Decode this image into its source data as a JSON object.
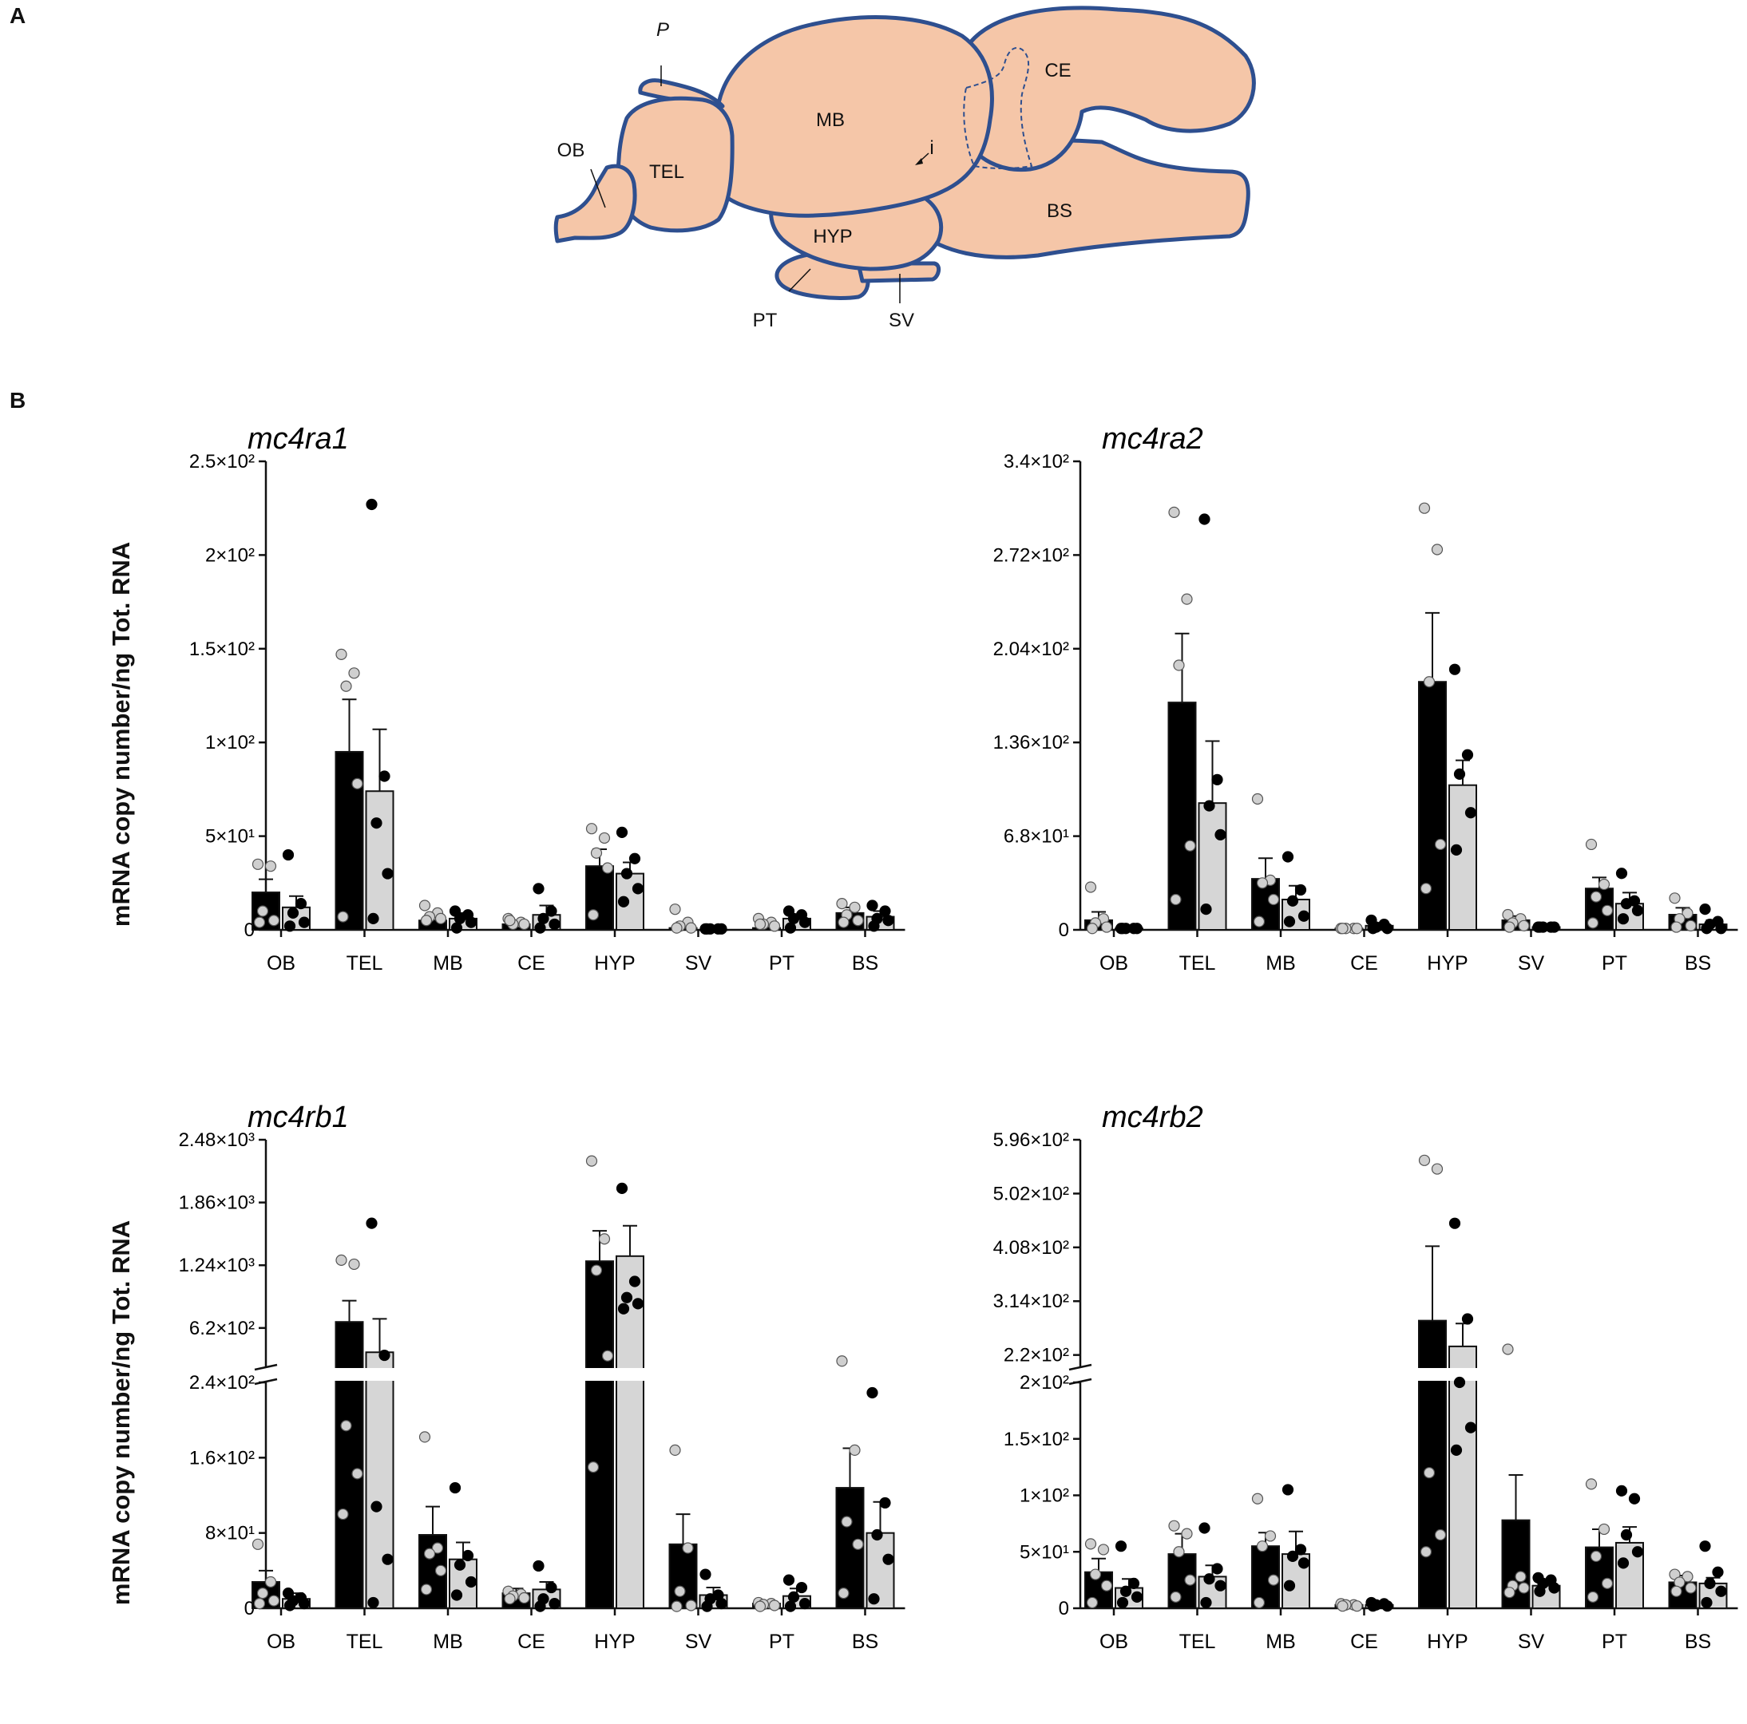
{
  "panel_a": {
    "letter": "A",
    "regions": {
      "ob": "OB",
      "tel": "TEL",
      "mb": "MB",
      "ce": "CE",
      "bs": "BS",
      "hyp": "HYP",
      "pt": "PT",
      "sv": "SV",
      "p": "P",
      "i": "i"
    }
  },
  "panel_b": {
    "letter": "B",
    "ylabel": "mRNA copy number/ng Tot. RNA"
  },
  "colors": {
    "brain_fill": "#f5c6a8",
    "brain_stroke": "#2e4f8f",
    "bar_black": "#000000",
    "bar_grey": "#d6d6d6",
    "dot_grey": "#cfcfcf"
  },
  "chart_data": [
    {
      "type": "bar",
      "title": "mc4ra1",
      "categories": [
        "OB",
        "TEL",
        "MB",
        "CE",
        "HYP",
        "SV",
        "PT",
        "BS"
      ],
      "ylabel": "mRNA copy number/ng Tot. RNA",
      "ylim": [
        0,
        250
      ],
      "yticks": [
        {
          "v": 0,
          "label": "0"
        },
        {
          "v": 50,
          "label": "5×10¹"
        },
        {
          "v": 100,
          "label": "1×10²"
        },
        {
          "v": 150,
          "label": "1.5×10²"
        },
        {
          "v": 200,
          "label": "2×10²"
        },
        {
          "v": 250,
          "label": "2.5×10²"
        }
      ],
      "series": [
        {
          "name": "black",
          "values": [
            20,
            95,
            5,
            3,
            34,
            1,
            1,
            9
          ],
          "errors": [
            7,
            28,
            2,
            1,
            9,
            3,
            1,
            3
          ],
          "points": [
            [
              35,
              34,
              10,
              5,
              4
            ],
            [
              147,
              137,
              130,
              78,
              7
            ],
            [
              13,
              9,
              7,
              6,
              5
            ],
            [
              6,
              4,
              3,
              3,
              5
            ],
            [
              54,
              49,
              41,
              33,
              8
            ],
            [
              11,
              4,
              2,
              1,
              1
            ],
            [
              6,
              4,
              3,
              2,
              3
            ],
            [
              14,
              12,
              8,
              5,
              4
            ]
          ]
        },
        {
          "name": "grey",
          "values": [
            12,
            74,
            6,
            8,
            30,
            0,
            6,
            7
          ],
          "errors": [
            6,
            33,
            3,
            5,
            6,
            0,
            2,
            3
          ],
          "points": [
            [
              40,
              14,
              9,
              4,
              2
            ],
            [
              227,
              82,
              57,
              30,
              6
            ],
            [
              10,
              8,
              6,
              4,
              1
            ],
            [
              22,
              10,
              6,
              3,
              1
            ],
            [
              52,
              38,
              30,
              22,
              15
            ],
            [
              0.5,
              0.5,
              0.5,
              0.5,
              0.5
            ],
            [
              10,
              8,
              6,
              4,
              1
            ],
            [
              13,
              10,
              6,
              5,
              2
            ]
          ]
        }
      ]
    },
    {
      "type": "bar",
      "title": "mc4ra2",
      "categories": [
        "OB",
        "TEL",
        "MB",
        "CE",
        "HYP",
        "SV",
        "PT",
        "BS"
      ],
      "ylabel": "mRNA copy number/ng Tot. RNA",
      "ylim": [
        0,
        340
      ],
      "yticks": [
        {
          "v": 0,
          "label": "0"
        },
        {
          "v": 68,
          "label": "6.8×10¹"
        },
        {
          "v": 136,
          "label": "1.36×10²"
        },
        {
          "v": 204,
          "label": "2.04×10²"
        },
        {
          "v": 272,
          "label": "2.72×10²"
        },
        {
          "v": 340,
          "label": "3.4×10²"
        }
      ],
      "series": [
        {
          "name": "black",
          "values": [
            7,
            165,
            37,
            1,
            180,
            7,
            30,
            11
          ],
          "errors": [
            6,
            50,
            15,
            1,
            50,
            3,
            8,
            5
          ],
          "points": [
            [
              31,
              8,
              5,
              2,
              1
            ],
            [
              303,
              240,
              192,
              61,
              22
            ],
            [
              95,
              36,
              34,
              22,
              6
            ],
            [
              1,
              1,
              1,
              1,
              1
            ],
            [
              306,
              276,
              180,
              62,
              30
            ],
            [
              11,
              8,
              5,
              3,
              2
            ],
            [
              62,
              33,
              24,
              14,
              5
            ],
            [
              23,
              12,
              8,
              3,
              2
            ]
          ]
        },
        {
          "name": "grey",
          "values": [
            1,
            92,
            22,
            3,
            105,
            2,
            19,
            4
          ],
          "errors": [
            1,
            45,
            10,
            2,
            18,
            1,
            8,
            3
          ],
          "points": [
            [
              1,
              1,
              1,
              1,
              1
            ],
            [
              298,
              109,
              90,
              69,
              15
            ],
            [
              53,
              29,
              21,
              10,
              6
            ],
            [
              7,
              4,
              2,
              1,
              1
            ],
            [
              189,
              127,
              113,
              85,
              58
            ],
            [
              2,
              2,
              2,
              2,
              2
            ],
            [
              41,
              21,
              19,
              14,
              8
            ],
            [
              15,
              6,
              4,
              1,
              1
            ]
          ]
        }
      ]
    },
    {
      "type": "bar",
      "title": "mc4rb1",
      "categories": [
        "OB",
        "TEL",
        "MB",
        "CE",
        "HYP",
        "SV",
        "PT",
        "BS"
      ],
      "ylabel": "mRNA copy number/ng Tot. RNA",
      "broken_axis": true,
      "lower_ylim": [
        0,
        240
      ],
      "upper_ylim": [
        240,
        2480
      ],
      "yticks": [
        {
          "v": 0,
          "label": "0"
        },
        {
          "v": 80,
          "label": "8×10¹"
        },
        {
          "v": 160,
          "label": "1.6×10²"
        },
        {
          "v": 240,
          "label": "2.4×10²"
        },
        {
          "v": 620,
          "label": "6.2×10²"
        },
        {
          "v": 1240,
          "label": "1.24×10³"
        },
        {
          "v": 1860,
          "label": "1.86×10³"
        },
        {
          "v": 2480,
          "label": "2.48×10³"
        }
      ],
      "series": [
        {
          "name": "black",
          "values": [
            28,
            680,
            78,
            16,
            1280,
            68,
            5,
            128
          ],
          "errors": [
            12,
            210,
            30,
            5,
            300,
            32,
            2,
            42
          ],
          "points": [
            [
              68,
              28,
              16,
              8,
              5
            ],
            [
              1290,
              1250,
              194,
              143,
              100
            ],
            [
              182,
              64,
              58,
              40,
              20
            ],
            [
              18,
              15,
              13,
              11,
              10
            ],
            [
              2270,
              1500,
              1190,
              345,
              150
            ],
            [
              168,
              64,
              18,
              3,
              2
            ],
            [
              6,
              5,
              4,
              3,
              2
            ],
            [
              293,
              168,
              92,
              68,
              16
            ]
          ]
        },
        {
          "name": "grey",
          "values": [
            10,
            380,
            52,
            20,
            1330,
            14,
            13,
            80
          ],
          "errors": [
            6,
            330,
            18,
            8,
            300,
            8,
            8,
            33
          ],
          "points": [
            [
              16,
              11,
              8,
              5,
              3
            ],
            [
              1655,
              350,
              108,
              52,
              6
            ],
            [
              128,
              56,
              46,
              28,
              14
            ],
            [
              45,
              22,
              10,
              5,
              2
            ],
            [
              2000,
              1080,
              920,
              860,
              810
            ],
            [
              36,
              14,
              10,
              5,
              2
            ],
            [
              30,
              22,
              12,
              5,
              2
            ],
            [
              229,
              112,
              78,
              52,
              10
            ]
          ]
        }
      ]
    },
    {
      "type": "bar",
      "title": "mc4rb2",
      "categories": [
        "OB",
        "TEL",
        "MB",
        "CE",
        "HYP",
        "SV",
        "PT",
        "BS"
      ],
      "ylabel": "mRNA copy number/ng Tot. RNA",
      "broken_axis": true,
      "lower_ylim": [
        0,
        200
      ],
      "upper_ylim": [
        200,
        596
      ],
      "yticks": [
        {
          "v": 0,
          "label": "0"
        },
        {
          "v": 50,
          "label": "5×10¹"
        },
        {
          "v": 100,
          "label": "1×10²"
        },
        {
          "v": 150,
          "label": "1.5×10²"
        },
        {
          "v": 200,
          "label": "2×10²"
        },
        {
          "v": 220,
          "label": "2.2×10²"
        },
        {
          "v": 314,
          "label": "3.14×10²"
        },
        {
          "v": 408,
          "label": "4.08×10²"
        },
        {
          "v": 502,
          "label": "5.02×10²"
        },
        {
          "v": 596,
          "label": "5.96×10²"
        }
      ],
      "series": [
        {
          "name": "black",
          "values": [
            32,
            48,
            55,
            3,
            280,
            78,
            54,
            23
          ],
          "errors": [
            12,
            18,
            12,
            1,
            130,
            40,
            16,
            6
          ],
          "points": [
            [
              57,
              52,
              30,
              20,
              5
            ],
            [
              73,
              66,
              50,
              25,
              10
            ],
            [
              97,
              64,
              55,
              25,
              5
            ],
            [
              4,
              3,
              3,
              2,
              2
            ],
            [
              560,
              545,
              120,
              65,
              50
            ],
            [
              230,
              28,
              20,
              18,
              14
            ],
            [
              110,
              70,
              46,
              22,
              10
            ],
            [
              30,
              28,
              23,
              18,
              15
            ]
          ]
        },
        {
          "name": "grey",
          "values": [
            18,
            28,
            48,
            3,
            235,
            20,
            58,
            22
          ],
          "errors": [
            8,
            10,
            20,
            1,
            40,
            5,
            14,
            5
          ],
          "points": [
            [
              55,
              22,
              15,
              10,
              5
            ],
            [
              71,
              35,
              26,
              20,
              5
            ],
            [
              105,
              52,
              46,
              40,
              20
            ],
            [
              5,
              4,
              3,
              2,
              2
            ],
            [
              450,
              283,
              200,
              160,
              140
            ],
            [
              27,
              25,
              22,
              18,
              15
            ],
            [
              104,
              97,
              65,
              50,
              40
            ],
            [
              55,
              32,
              22,
              15,
              5
            ]
          ]
        }
      ]
    }
  ]
}
